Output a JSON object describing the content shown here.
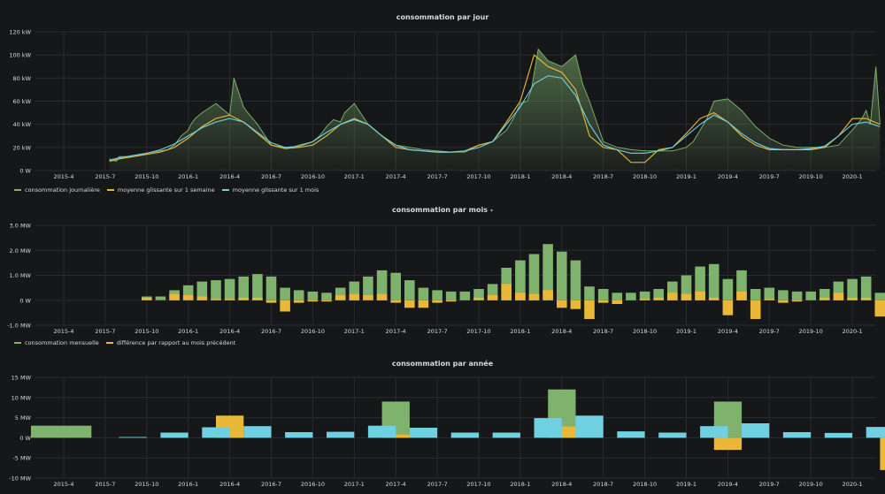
{
  "colors": {
    "green": "#7eb26d",
    "yellow": "#eab839",
    "blue": "#6ed0e0",
    "grid": "#2a2b2e",
    "axis_text": "#d8d9da",
    "background": "#161719"
  },
  "x_ticks": [
    "2015-4",
    "2015-7",
    "2015-10",
    "2016-1",
    "2016-4",
    "2016-7",
    "2016-10",
    "2017-1",
    "2017-4",
    "2017-7",
    "2017-10",
    "2018-1",
    "2018-4",
    "2018-7",
    "2018-10",
    "2019-1",
    "2019-4",
    "2019-7",
    "2019-10",
    "2020-1"
  ],
  "panels": {
    "daily": {
      "title": "consommation par jour",
      "y_ticks": [
        "120 kW",
        "100 kW",
        "80 kW",
        "60 kW",
        "40 kW",
        "20 kW",
        "0 W"
      ],
      "legend": [
        {
          "label": "consommation journalière",
          "color": "#7eb26d"
        },
        {
          "label": "moyenne glissante sur 1 semaine",
          "color": "#eab839"
        },
        {
          "label": "moyenne glissante sur 1 mois",
          "color": "#6ed0e0"
        }
      ]
    },
    "monthly": {
      "title": "consommation par mois",
      "caret": "▾",
      "y_ticks": [
        "3.0 MW",
        "2.0 MW",
        "1.0 MW",
        "0 W",
        "-1.0 MW"
      ],
      "legend": [
        {
          "label": "consommation mensuelle",
          "color": "#7eb26d"
        },
        {
          "label": "différence par rapport au mois précédent",
          "color": "#eab839"
        }
      ]
    },
    "yearly": {
      "title": "consommation par année",
      "y_ticks": [
        "15 MW",
        "10 MW",
        "5 MW",
        "0 W",
        "-5 MW",
        "-10 MW"
      ]
    }
  },
  "chart_data": [
    {
      "type": "area",
      "title": "consommation par jour",
      "ylim": [
        0,
        120
      ],
      "yunit": "kW",
      "series": [
        {
          "name": "consommation journalière",
          "x_month": [
            3.3,
            3.8,
            4.0,
            5.0,
            6.0,
            7.0,
            7.5,
            8.0,
            8.5,
            9.0,
            9.2,
            9.5,
            10.0,
            11.0,
            12.0,
            12.3,
            13.0,
            13.3,
            14.0,
            15.0,
            16.0,
            16.5,
            17.0,
            18.0,
            18.5,
            19.0,
            19.5,
            20.0,
            20.3,
            21.0,
            22.0,
            23.0,
            24.0,
            25.0,
            26.0,
            27.0,
            28.0,
            29.0,
            29.3,
            30.0,
            31.0,
            32.0,
            32.5,
            33.0,
            33.5,
            33.8,
            34.3,
            35.0,
            36.0,
            37.0,
            37.5,
            38.0,
            39.0,
            40.0,
            41.0,
            42.0,
            43.0,
            44.0,
            45.0,
            45.5,
            46.0,
            46.5,
            47.0,
            48.0,
            49.0,
            50.0,
            51.0,
            52.0,
            53.0,
            54.0,
            55.0,
            56.0,
            57.0,
            57.7,
            58.0,
            58.3,
            58.7,
            59.0
          ],
          "values": [
            10,
            8,
            12,
            12,
            15,
            17,
            18,
            22,
            30,
            35,
            40,
            45,
            50,
            58,
            48,
            80,
            55,
            50,
            40,
            22,
            20,
            20,
            22,
            25,
            30,
            38,
            44,
            42,
            50,
            58,
            40,
            30,
            22,
            20,
            18,
            17,
            16,
            16,
            18,
            22,
            25,
            35,
            45,
            58,
            60,
            70,
            105,
            95,
            90,
            100,
            75,
            60,
            25,
            20,
            18,
            17,
            17,
            17,
            20,
            25,
            35,
            45,
            60,
            62,
            52,
            38,
            28,
            22,
            20,
            20,
            20,
            22,
            35,
            45,
            52,
            40,
            90,
            40
          ]
        },
        {
          "name": "moyenne glissante sur 1 semaine",
          "x_month": [
            3.3,
            4.0,
            5.0,
            6.0,
            7.0,
            8.0,
            9.0,
            10.0,
            11.0,
            12.0,
            13.0,
            14.0,
            15.0,
            16.0,
            17.0,
            18.0,
            19.0,
            20.0,
            21.0,
            22.0,
            23.0,
            24.0,
            25.0,
            26.0,
            27.0,
            28.0,
            29.0,
            30.0,
            31.0,
            32.0,
            33.0,
            34.0,
            35.0,
            36.0,
            37.0,
            38.0,
            39.0,
            40.0,
            41.0,
            42.0,
            43.0,
            44.0,
            45.0,
            46.0,
            47.0,
            48.0,
            49.0,
            50.0,
            51.0,
            52.0,
            53.0,
            54.0,
            55.0,
            56.0,
            57.0,
            58.0,
            59.0
          ],
          "values": [
            8,
            10,
            12,
            14,
            16,
            20,
            28,
            38,
            45,
            48,
            42,
            32,
            22,
            19,
            20,
            22,
            30,
            40,
            45,
            40,
            30,
            20,
            18,
            17,
            16,
            16,
            17,
            22,
            25,
            42,
            60,
            100,
            90,
            85,
            70,
            30,
            20,
            18,
            7,
            7,
            18,
            20,
            32,
            45,
            50,
            42,
            30,
            22,
            18,
            18,
            18,
            18,
            20,
            30,
            45,
            45,
            40
          ]
        },
        {
          "name": "moyenne glissante sur 1 mois",
          "x_month": [
            3.3,
            4.0,
            5.0,
            6.0,
            7.0,
            8.0,
            9.0,
            10.0,
            11.0,
            12.0,
            13.0,
            14.0,
            15.0,
            16.0,
            17.0,
            18.0,
            19.0,
            20.0,
            21.0,
            22.0,
            23.0,
            24.0,
            25.0,
            26.0,
            27.0,
            28.0,
            29.0,
            30.0,
            31.0,
            32.0,
            33.0,
            34.0,
            35.0,
            36.0,
            37.0,
            38.0,
            39.0,
            40.0,
            41.0,
            42.0,
            43.0,
            44.0,
            45.0,
            46.0,
            47.0,
            48.0,
            49.0,
            50.0,
            51.0,
            52.0,
            53.0,
            54.0,
            55.0,
            56.0,
            57.0,
            58.0,
            59.0
          ],
          "values": [
            9,
            11,
            13,
            15,
            18,
            23,
            30,
            37,
            42,
            45,
            42,
            33,
            24,
            20,
            21,
            25,
            33,
            40,
            44,
            40,
            30,
            22,
            18,
            17,
            16,
            16,
            17,
            20,
            25,
            40,
            55,
            75,
            82,
            80,
            65,
            40,
            22,
            18,
            15,
            15,
            17,
            20,
            30,
            40,
            48,
            42,
            32,
            24,
            19,
            18,
            18,
            19,
            21,
            30,
            40,
            42,
            38
          ]
        }
      ]
    },
    {
      "type": "bar",
      "title": "consommation par mois",
      "ylim": [
        -1.0,
        3.0
      ],
      "yunit": "MW",
      "x_month": [
        6,
        7,
        8,
        9,
        10,
        11,
        12,
        13,
        14,
        15,
        16,
        17,
        18,
        19,
        20,
        21,
        22,
        23,
        24,
        25,
        26,
        27,
        28,
        29,
        30,
        31,
        32,
        33,
        34,
        35,
        36,
        37,
        38,
        39,
        40,
        41,
        42,
        43,
        44,
        45,
        46,
        47,
        48,
        49,
        50,
        51,
        52,
        53,
        54,
        55,
        56,
        57,
        58,
        59
      ],
      "series": [
        {
          "name": "consommation mensuelle",
          "values": [
            0.15,
            0.15,
            0.4,
            0.6,
            0.75,
            0.8,
            0.85,
            0.95,
            1.05,
            0.95,
            0.5,
            0.4,
            0.35,
            0.3,
            0.5,
            0.75,
            0.95,
            1.2,
            1.1,
            0.8,
            0.5,
            0.4,
            0.35,
            0.35,
            0.45,
            0.65,
            1.3,
            1.6,
            1.85,
            2.25,
            1.95,
            1.6,
            0.55,
            0.45,
            0.3,
            0.3,
            0.35,
            0.45,
            0.75,
            1.0,
            1.35,
            1.45,
            0.85,
            1.2,
            0.45,
            0.5,
            0.4,
            0.35,
            0.35,
            0.45,
            0.75,
            0.85,
            0.95,
            0.3
          ]
        },
        {
          "name": "différence par rapport au mois précédent",
          "values": [
            0.1,
            0.0,
            0.25,
            0.2,
            0.15,
            0.05,
            0.05,
            0.1,
            0.1,
            -0.1,
            -0.45,
            -0.1,
            -0.05,
            -0.05,
            0.2,
            0.25,
            0.2,
            0.25,
            -0.1,
            -0.3,
            -0.3,
            -0.1,
            -0.05,
            0.0,
            0.1,
            0.2,
            0.65,
            0.3,
            0.25,
            0.4,
            -0.3,
            -0.35,
            -0.75,
            -0.1,
            -0.15,
            0.0,
            0.05,
            0.1,
            0.3,
            0.25,
            0.35,
            0.1,
            -0.6,
            0.35,
            -0.75,
            0.05,
            -0.1,
            -0.05,
            0.0,
            0.1,
            0.3,
            0.1,
            0.1,
            -0.65
          ]
        }
      ]
    },
    {
      "type": "bar",
      "title": "consommation par année",
      "ylim": [
        -10,
        15
      ],
      "yunit": "MW",
      "green": [
        {
          "x_start": 0,
          "x_end": 2,
          "value": 3.0
        },
        {
          "x_start": 11,
          "x_end": 13,
          "value": 0.3
        },
        {
          "x_start": 23,
          "x_end": 25,
          "value": 9.0
        },
        {
          "x_start": 35,
          "x_end": 37,
          "value": 12.0
        },
        {
          "x_start": 47,
          "x_end": 49,
          "value": 9.0
        },
        {
          "x_start": 59,
          "x_end": 60,
          "value": 1.0
        }
      ],
      "yellow": [
        {
          "x_start": 11,
          "x_end": 13,
          "value": 5.5
        },
        {
          "x_start": 23,
          "x_end": 25,
          "value": 0.8
        },
        {
          "x_start": 35,
          "x_end": 37,
          "value": 2.8
        },
        {
          "x_start": 47,
          "x_end": 49,
          "value": -3.0
        },
        {
          "x_start": 59,
          "x_end": 60,
          "value": -8.0
        }
      ],
      "blue": [
        {
          "x_start": 4,
          "x_end": 6,
          "value": 0.2
        },
        {
          "x_start": 7,
          "x_end": 9,
          "value": 1.3
        },
        {
          "x_start": 10,
          "x_end": 12,
          "value": 2.6
        },
        {
          "x_start": 13,
          "x_end": 15,
          "value": 2.9
        },
        {
          "x_start": 16,
          "x_end": 18,
          "value": 1.4
        },
        {
          "x_start": 19,
          "x_end": 21,
          "value": 1.5
        },
        {
          "x_start": 22,
          "x_end": 24,
          "value": 3.0
        },
        {
          "x_start": 25,
          "x_end": 27,
          "value": 2.5
        },
        {
          "x_start": 28,
          "x_end": 30,
          "value": 1.3
        },
        {
          "x_start": 31,
          "x_end": 33,
          "value": 1.3
        },
        {
          "x_start": 34,
          "x_end": 36,
          "value": 4.9
        },
        {
          "x_start": 37,
          "x_end": 39,
          "value": 5.5
        },
        {
          "x_start": 40,
          "x_end": 42,
          "value": 1.6
        },
        {
          "x_start": 43,
          "x_end": 45,
          "value": 1.3
        },
        {
          "x_start": 46,
          "x_end": 48,
          "value": 2.9
        },
        {
          "x_start": 49,
          "x_end": 51,
          "value": 3.6
        },
        {
          "x_start": 52,
          "x_end": 54,
          "value": 1.4
        },
        {
          "x_start": 55,
          "x_end": 57,
          "value": 1.2
        },
        {
          "x_start": 58,
          "x_end": 60,
          "value": 2.7
        }
      ]
    }
  ]
}
